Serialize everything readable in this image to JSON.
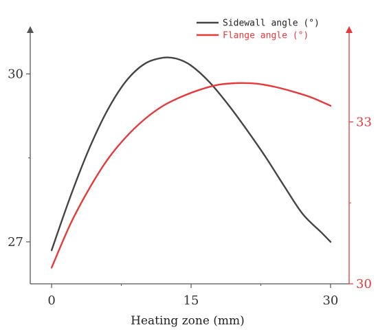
{
  "chart_data": {
    "type": "line",
    "title": "",
    "xlabel": "Heating zone (mm)",
    "xlim": [
      -2.3,
      32
    ],
    "x_ticks": [
      0,
      15,
      30
    ],
    "y_left": {
      "label": "",
      "ylim": [
        26.25,
        30.83
      ],
      "major_ticks": [
        27,
        30
      ],
      "minor_ticks": [
        28.5
      ],
      "color": "#555555"
    },
    "y_right": {
      "label": "",
      "ylim": [
        30,
        34.75
      ],
      "major_ticks": [
        30,
        33
      ],
      "minor_ticks": [
        31.5
      ],
      "color": "#e8393a"
    },
    "series": [
      {
        "name": "Sidewall angle (°)",
        "axis": "left",
        "color": "#444444",
        "x": [
          0,
          2,
          4,
          6,
          8,
          10,
          12,
          13.5,
          15,
          17,
          19,
          21,
          23,
          25,
          27,
          29,
          30
        ],
        "y": [
          26.85,
          27.8,
          28.65,
          29.35,
          29.87,
          30.18,
          30.29,
          30.27,
          30.15,
          29.85,
          29.45,
          29.0,
          28.52,
          28.0,
          27.5,
          27.17,
          27.0
        ]
      },
      {
        "name": "Flange angle (°)",
        "axis": "right",
        "color": "#e8393a",
        "x": [
          0,
          2,
          4,
          6,
          8,
          10,
          12,
          14,
          16,
          18,
          20,
          22,
          24,
          26,
          28,
          30
        ],
        "y": [
          30.3,
          31.1,
          31.75,
          32.3,
          32.72,
          33.05,
          33.3,
          33.47,
          33.6,
          33.69,
          33.72,
          33.71,
          33.65,
          33.56,
          33.45,
          33.3
        ]
      }
    ],
    "legend": {
      "placement": "top-right"
    },
    "grid": false
  }
}
